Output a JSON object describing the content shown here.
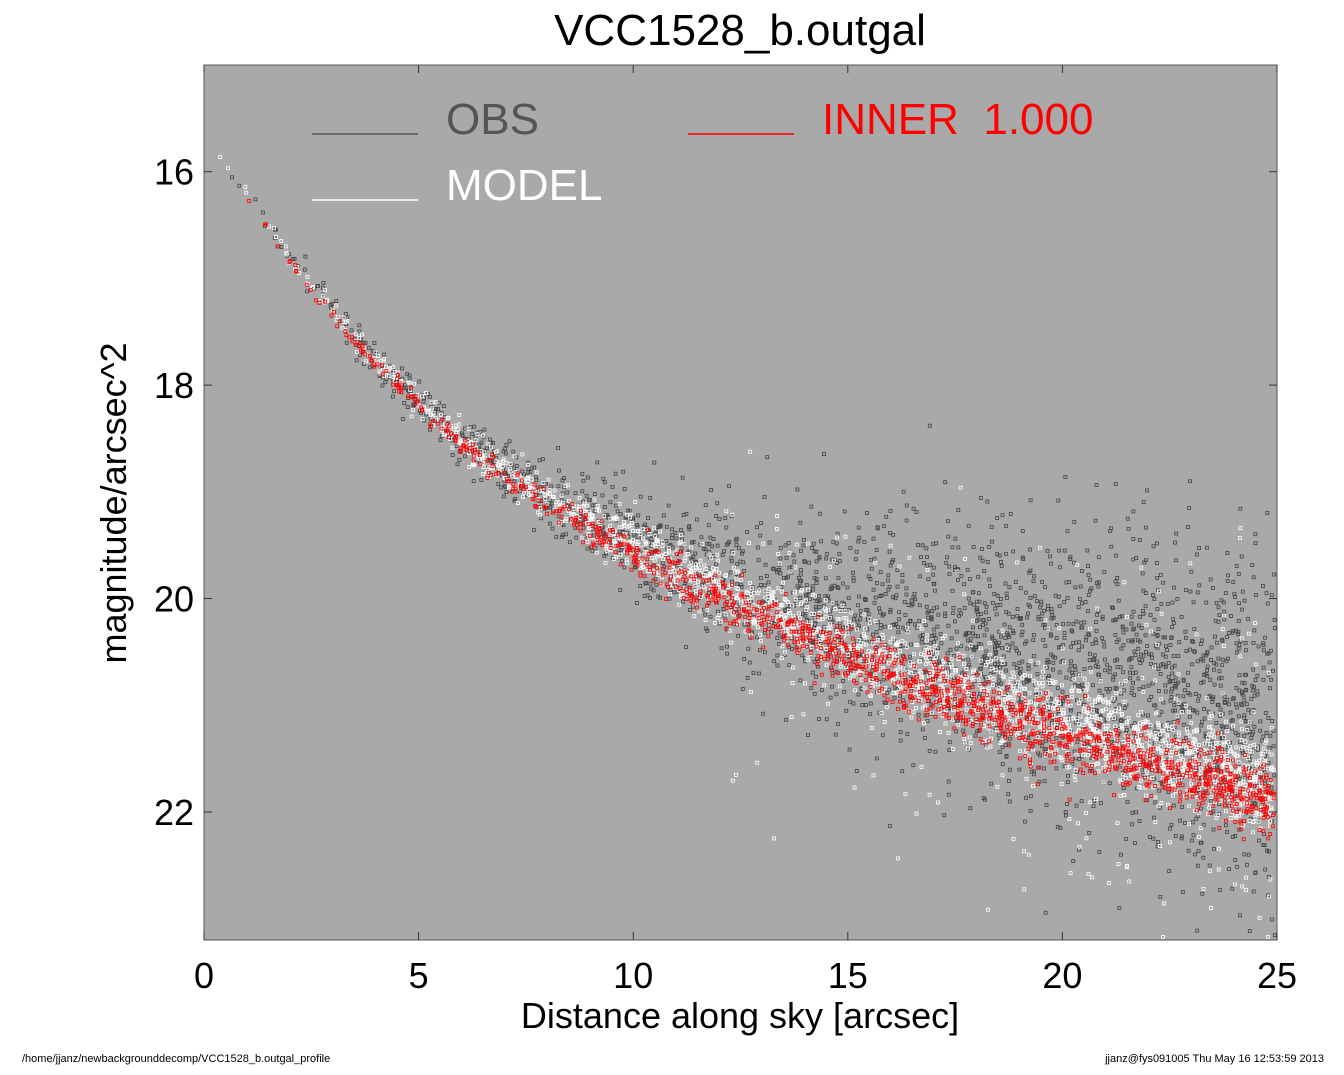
{
  "chart_data": {
    "type": "scatter",
    "title": "VCC1528_b.outgal",
    "xlabel": "Distance along sky [arcsec]",
    "ylabel": "magnitude/arcsec^2",
    "xlim": [
      0,
      25
    ],
    "ylim": [
      23.2,
      15.0
    ],
    "y_inverted": true,
    "x_ticks": [
      0,
      5,
      10,
      15,
      20,
      25
    ],
    "x_tick_labels": [
      "0",
      "5",
      "10",
      "15",
      "20",
      "25"
    ],
    "y_ticks": [
      16,
      18,
      20,
      22
    ],
    "y_tick_labels": [
      "16",
      "18",
      "20",
      "22"
    ],
    "grid": false,
    "plot_background": "#a9a9a9",
    "legend": {
      "placement": "top",
      "entries": [
        {
          "label": "OBS",
          "color": "#555555"
        },
        {
          "label": "INNER  1.000",
          "color": "#ff0000"
        },
        {
          "label": "MODEL",
          "color": "#ffffff"
        }
      ]
    },
    "series": [
      {
        "name": "OBS",
        "color": "#444444",
        "marker": "open-square",
        "profile_x": [
          0.3,
          1,
          2,
          3,
          4,
          5,
          6,
          7,
          8,
          9,
          10,
          12,
          14,
          16,
          18,
          20,
          22,
          24,
          25
        ],
        "profile_y": [
          15.85,
          16.2,
          16.8,
          17.3,
          17.75,
          18.15,
          18.5,
          18.8,
          19.05,
          19.25,
          19.45,
          19.8,
          20.05,
          20.3,
          20.5,
          20.7,
          20.9,
          21.1,
          21.2
        ],
        "scatter_width": [
          0.05,
          0.08,
          0.12,
          0.15,
          0.18,
          0.2,
          0.22,
          0.25,
          0.3,
          0.35,
          0.45,
          0.6,
          0.8,
          1.0,
          1.1,
          1.2,
          1.3,
          1.4,
          1.5
        ],
        "n_points": 2600
      },
      {
        "name": "MODEL",
        "color": "#ffffff",
        "marker": "open-square",
        "profile_x": [
          0.3,
          1,
          2,
          3,
          4,
          5,
          6,
          7,
          8,
          9,
          10,
          12,
          14,
          16,
          18,
          20,
          22,
          24,
          25
        ],
        "profile_y": [
          15.85,
          16.2,
          16.8,
          17.3,
          17.75,
          18.15,
          18.5,
          18.8,
          19.05,
          19.3,
          19.5,
          19.9,
          20.25,
          20.6,
          20.9,
          21.15,
          21.4,
          21.65,
          21.75
        ],
        "scatter_width": [
          0.04,
          0.06,
          0.08,
          0.1,
          0.12,
          0.14,
          0.16,
          0.18,
          0.2,
          0.22,
          0.24,
          0.28,
          0.3,
          0.32,
          0.34,
          0.36,
          0.38,
          0.4,
          0.42
        ],
        "n_points": 2400
      },
      {
        "name": "INNER  1.000",
        "color": "#ff0000",
        "marker": "open-square",
        "profile_x": [
          0.8,
          1,
          2,
          3,
          4,
          5,
          6,
          7,
          8,
          9,
          10,
          12,
          14,
          16,
          18,
          20,
          22,
          24,
          25
        ],
        "profile_y": [
          16.1,
          16.25,
          16.85,
          17.35,
          17.8,
          18.2,
          18.55,
          18.85,
          19.1,
          19.35,
          19.6,
          20.0,
          20.35,
          20.7,
          21.0,
          21.3,
          21.55,
          21.8,
          21.95
        ],
        "scatter_width": [
          0.02,
          0.03,
          0.05,
          0.06,
          0.08,
          0.09,
          0.1,
          0.12,
          0.14,
          0.16,
          0.18,
          0.2,
          0.22,
          0.24,
          0.26,
          0.27,
          0.28,
          0.29,
          0.3
        ],
        "n_points": 1400
      }
    ]
  },
  "footer": {
    "path": "/home/jjanz/newbackgrounddecomp/VCC1528_b.outgal_profile",
    "stamp": "jjanz@fys091005  Thu May 16 12:53:59 2013"
  }
}
